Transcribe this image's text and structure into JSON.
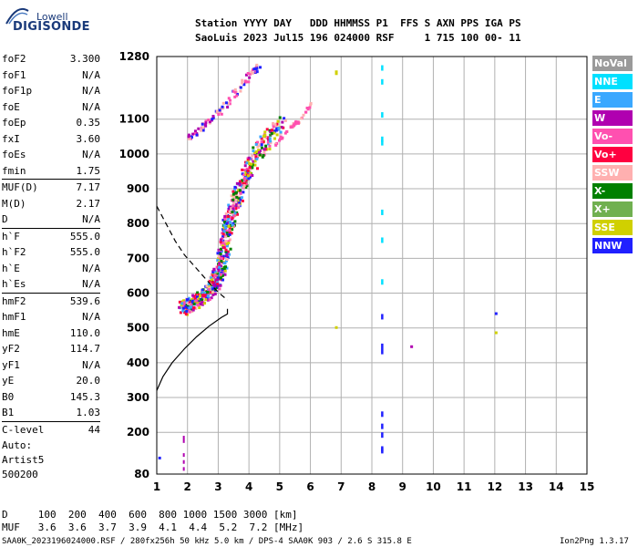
{
  "logo": {
    "line1": "Lowell",
    "line2": "DIGISONDE"
  },
  "header": {
    "labels": "Station YYYY DAY   DDD HHMMSS P1  FFS S AXN PPS IGA PS",
    "values": "SaoLuis 2023 Jul15 196 024000 RSF     1 715 100 00- 11"
  },
  "params": [
    {
      "name": "foF2",
      "value": "3.300"
    },
    {
      "name": "foF1",
      "value": "N/A"
    },
    {
      "name": "foF1p",
      "value": "N/A"
    },
    {
      "name": "foE",
      "value": "N/A"
    },
    {
      "name": "foEp",
      "value": "0.35"
    },
    {
      "name": "fxI",
      "value": "3.60"
    },
    {
      "name": "foEs",
      "value": "N/A"
    },
    {
      "name": "fmin",
      "value": "1.75"
    },
    {
      "name": "MUF(D)",
      "value": "7.17"
    },
    {
      "name": "M(D)",
      "value": "2.17"
    },
    {
      "name": "D",
      "value": "N/A"
    },
    {
      "name": "h`F",
      "value": "555.0"
    },
    {
      "name": "h`F2",
      "value": "555.0"
    },
    {
      "name": "h`E",
      "value": "N/A"
    },
    {
      "name": "h`Es",
      "value": "N/A"
    },
    {
      "name": "hmF2",
      "value": "539.6"
    },
    {
      "name": "hmF1",
      "value": "N/A"
    },
    {
      "name": "hmE",
      "value": "110.0"
    },
    {
      "name": "yF2",
      "value": "114.7"
    },
    {
      "name": "yF1",
      "value": "N/A"
    },
    {
      "name": "yE",
      "value": "20.0"
    },
    {
      "name": "B0",
      "value": "145.3"
    },
    {
      "name": "B1",
      "value": "1.03"
    },
    {
      "name": "C-level",
      "value": "44"
    }
  ],
  "auto": {
    "line1": "Auto:",
    "line2": "Artist5",
    "line3": "500200"
  },
  "legend": [
    {
      "label": "NoVal",
      "color": "#9a9a9a"
    },
    {
      "label": "NNE",
      "color": "#00e0ff"
    },
    {
      "label": "E",
      "color": "#3aa8ff"
    },
    {
      "label": "W",
      "color": "#b000b0"
    },
    {
      "label": "Vo-",
      "color": "#ff50b0"
    },
    {
      "label": "Vo+",
      "color": "#ff0040"
    },
    {
      "label": "SSW",
      "color": "#ffb0b0"
    },
    {
      "label": "X-",
      "color": "#008000"
    },
    {
      "label": "X+",
      "color": "#70b050"
    },
    {
      "label": "SSE",
      "color": "#d0d000"
    },
    {
      "label": "NNW",
      "color": "#2020ff"
    }
  ],
  "footer": {
    "d_row": "D     100  200  400  600  800 1000 1500 3000 [km]",
    "muf_row": "MUF   3.6  3.6  3.7  3.9  4.1  4.4  5.2  7.2 [MHz]",
    "file_line": "SAA0K_2023196024000.RSF / 280fx256h 50 kHz 5.0 km / DPS-4 SAA0K 903 / 2.6 S 315.8 E",
    "version": "Ion2Png 1.3.17"
  },
  "chart_data": {
    "type": "scatter",
    "title": "",
    "xlabel": "",
    "ylabel": "",
    "xlim": [
      1,
      15
    ],
    "ylim": [
      80,
      1280
    ],
    "xticks": [
      1,
      2,
      3,
      4,
      5,
      6,
      7,
      8,
      9,
      10,
      11,
      12,
      13,
      14,
      15
    ],
    "yticks": [
      80,
      200,
      300,
      400,
      500,
      600,
      700,
      800,
      900,
      1000,
      1100,
      1280
    ],
    "grid": true,
    "ordinary_trace": [
      [
        1.75,
        560
      ],
      [
        2.0,
        570
      ],
      [
        2.3,
        585
      ],
      [
        2.6,
        600
      ],
      [
        2.85,
        630
      ],
      [
        3.0,
        660
      ],
      [
        3.1,
        700
      ],
      [
        3.2,
        750
      ],
      [
        3.3,
        800
      ],
      [
        3.45,
        850
      ],
      [
        3.65,
        900
      ],
      [
        3.9,
        950
      ],
      [
        4.2,
        1000
      ],
      [
        4.6,
        1050
      ],
      [
        5.0,
        1100
      ]
    ],
    "second_hop_trace": [
      [
        2.0,
        1050
      ],
      [
        2.4,
        1080
      ],
      [
        2.8,
        1110
      ],
      [
        3.2,
        1140
      ],
      [
        3.6,
        1190
      ],
      [
        4.0,
        1230
      ],
      [
        4.3,
        1260
      ]
    ],
    "profile_line": [
      [
        1.0,
        320
      ],
      [
        1.2,
        360
      ],
      [
        1.5,
        400
      ],
      [
        1.9,
        440
      ],
      [
        2.3,
        475
      ],
      [
        2.7,
        505
      ],
      [
        3.1,
        530
      ],
      [
        3.3,
        540
      ],
      [
        3.3,
        555
      ]
    ],
    "dashed_line": [
      [
        1.0,
        850
      ],
      [
        1.3,
        800
      ],
      [
        1.6,
        750
      ],
      [
        1.9,
        710
      ],
      [
        2.2,
        680
      ],
      [
        2.5,
        650
      ],
      [
        2.8,
        620
      ],
      [
        3.1,
        595
      ],
      [
        3.3,
        580
      ]
    ]
  }
}
